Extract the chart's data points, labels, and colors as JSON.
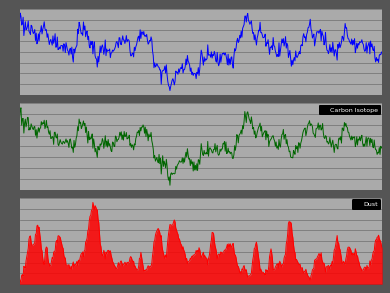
{
  "bg_color": "#555555",
  "panel_bg": "#aaaaaa",
  "co2_color": "#0000ff",
  "temp_color": "#006600",
  "dust_color": "#ff0000",
  "temp_legend": "Carbon Isotope",
  "dust_legend": "Dust",
  "seed": 123,
  "n_points": 500,
  "line_width": 0.7,
  "grid_color": "#000000",
  "grid_alpha": 0.35,
  "n_gridlines": 8
}
